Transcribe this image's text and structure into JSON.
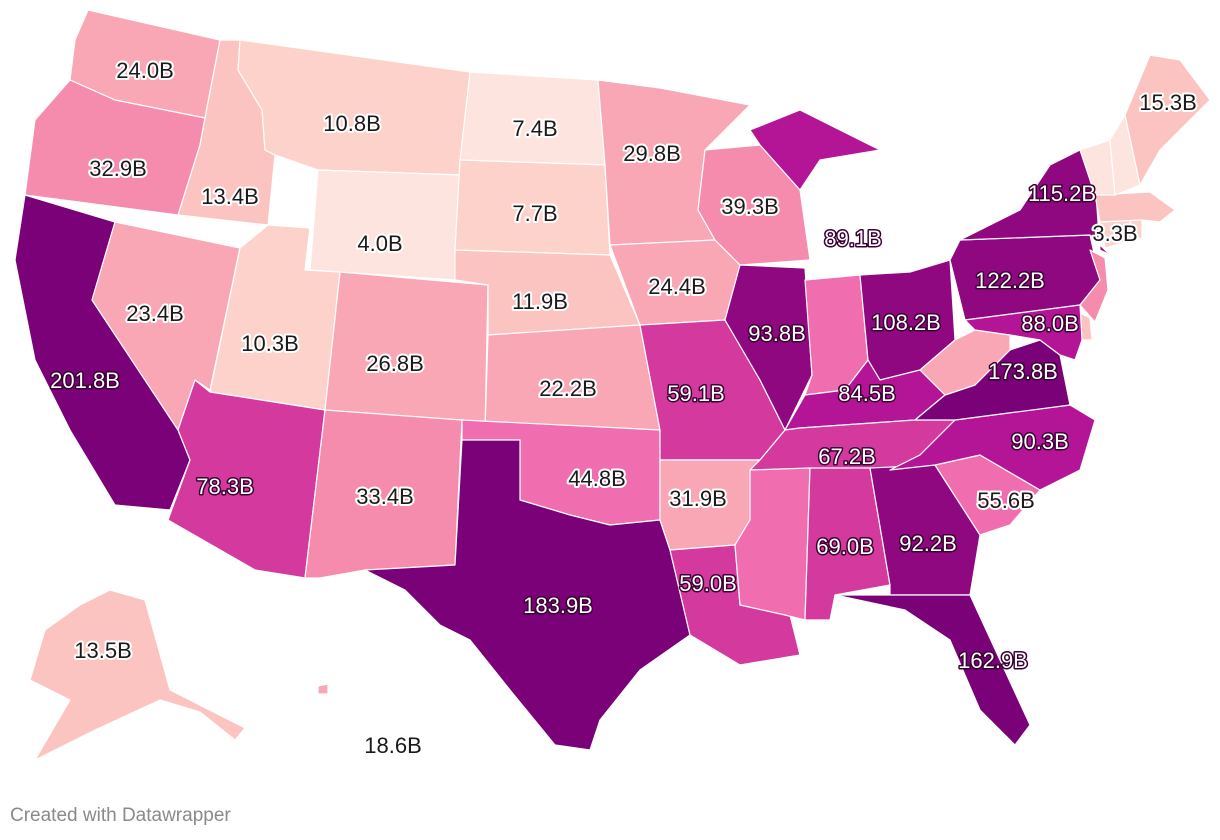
{
  "credit": "Created with Datawrapper",
  "colors": {
    "c0": "#fde4de",
    "c1": "#fcd2cb",
    "c2": "#fbc4c0",
    "c3": "#f9a6b5",
    "c4": "#f68cad",
    "c5": "#f06eb0",
    "c6": "#d43a9e",
    "c7": "#b31596",
    "c8": "#90087f",
    "c9": "#7a0177",
    "border": "#ffffff"
  },
  "chart_data": {
    "type": "map",
    "legend": "none",
    "regions": [
      {
        "id": "CA",
        "value": 201.8,
        "label": "201.8B",
        "color": "c9"
      },
      {
        "id": "TX",
        "value": 183.9,
        "label": "183.9B",
        "color": "c9"
      },
      {
        "id": "VA",
        "value": 173.8,
        "label": "173.8B",
        "color": "c9"
      },
      {
        "id": "FL",
        "value": 162.9,
        "label": "162.9B",
        "color": "c9"
      },
      {
        "id": "PA",
        "value": 122.2,
        "label": "122.2B",
        "color": "c8"
      },
      {
        "id": "NY",
        "value": 115.2,
        "label": "115.2B",
        "color": "c8"
      },
      {
        "id": "OH",
        "value": 108.2,
        "label": "108.2B",
        "color": "c8"
      },
      {
        "id": "IL",
        "value": 93.8,
        "label": "93.8B",
        "color": "c8"
      },
      {
        "id": "GA",
        "value": 92.2,
        "label": "92.2B",
        "color": "c8"
      },
      {
        "id": "NC",
        "value": 90.3,
        "label": "90.3B",
        "color": "c7"
      },
      {
        "id": "MI",
        "value": 89.1,
        "label": "89.1B",
        "color": "c7"
      },
      {
        "id": "MD",
        "value": 88.0,
        "label": "88.0B",
        "color": "c7"
      },
      {
        "id": "KY",
        "value": 84.5,
        "label": "84.5B",
        "color": "c7"
      },
      {
        "id": "AZ",
        "value": 78.3,
        "label": "78.3B",
        "color": "c6"
      },
      {
        "id": "AL",
        "value": 69.0,
        "label": "69.0B",
        "color": "c6"
      },
      {
        "id": "TN",
        "value": 67.2,
        "label": "67.2B",
        "color": "c6"
      },
      {
        "id": "MO",
        "value": 59.1,
        "label": "59.1B",
        "color": "c6"
      },
      {
        "id": "LA",
        "value": 59.0,
        "label": "59.0B",
        "color": "c6"
      },
      {
        "id": "SC",
        "value": 55.6,
        "label": "55.6B",
        "color": "c5"
      },
      {
        "id": "OK",
        "value": 44.8,
        "label": "44.8B",
        "color": "c5"
      },
      {
        "id": "WI",
        "value": 39.3,
        "label": "39.3B",
        "color": "c4"
      },
      {
        "id": "NM",
        "value": 33.4,
        "label": "33.4B",
        "color": "c4"
      },
      {
        "id": "OR",
        "value": 32.9,
        "label": "32.9B",
        "color": "c4"
      },
      {
        "id": "AR",
        "value": 31.9,
        "label": "31.9B",
        "color": "c3"
      },
      {
        "id": "MN",
        "value": 29.8,
        "label": "29.8B",
        "color": "c3"
      },
      {
        "id": "CO",
        "value": 26.8,
        "label": "26.8B",
        "color": "c3"
      },
      {
        "id": "IA",
        "value": 24.4,
        "label": "24.4B",
        "color": "c3"
      },
      {
        "id": "WA",
        "value": 24.0,
        "label": "24.0B",
        "color": "c3"
      },
      {
        "id": "NV",
        "value": 23.4,
        "label": "23.4B",
        "color": "c3"
      },
      {
        "id": "KS",
        "value": 22.2,
        "label": "22.2B",
        "color": "c3"
      },
      {
        "id": "HI",
        "value": 18.6,
        "label": "18.6B",
        "color": "c3"
      },
      {
        "id": "ME",
        "value": 15.3,
        "label": "15.3B",
        "color": "c2"
      },
      {
        "id": "AK",
        "value": 13.5,
        "label": "13.5B",
        "color": "c2"
      },
      {
        "id": "ID",
        "value": 13.4,
        "label": "13.4B",
        "color": "c2"
      },
      {
        "id": "NE",
        "value": 11.9,
        "label": "11.9B",
        "color": "c2"
      },
      {
        "id": "MT",
        "value": 10.8,
        "label": "10.8B",
        "color": "c1"
      },
      {
        "id": "UT",
        "value": 10.3,
        "label": "10.3B",
        "color": "c1"
      },
      {
        "id": "SD",
        "value": 7.7,
        "label": "7.7B",
        "color": "c1"
      },
      {
        "id": "ND",
        "value": 7.4,
        "label": "7.4B",
        "color": "c0"
      },
      {
        "id": "WY",
        "value": 4.0,
        "label": "4.0B",
        "color": "c0"
      },
      {
        "id": "CT",
        "value": 3.3,
        "label": "3.3B",
        "color": "c1"
      },
      {
        "id": "IN",
        "color": "c5"
      },
      {
        "id": "MS",
        "color": "c5"
      },
      {
        "id": "WV",
        "color": "c3"
      },
      {
        "id": "NJ",
        "color": "c4"
      },
      {
        "id": "DE",
        "color": "c2"
      },
      {
        "id": "MA",
        "color": "c2"
      },
      {
        "id": "NH",
        "color": "c0"
      },
      {
        "id": "VT",
        "color": "c0"
      },
      {
        "id": "RI",
        "color": "c1"
      }
    ]
  }
}
